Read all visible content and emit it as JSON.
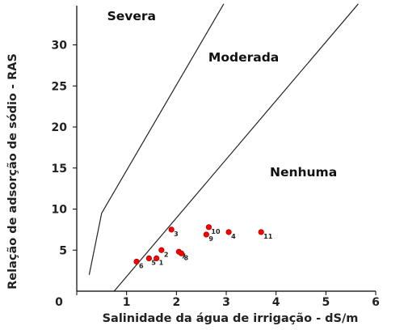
{
  "chart_data": {
    "type": "scatter",
    "xlabel": "Salinidade da água de irrigação - dS/m",
    "ylabel": "Relação de adsorção de sódio - RAS",
    "xlim": [
      0,
      6
    ],
    "ylim": [
      0,
      35
    ],
    "x_ticks": [
      "0",
      "1",
      "2",
      "3",
      "4",
      "5",
      "6"
    ],
    "y_ticks": [
      "5",
      "10",
      "15",
      "20",
      "25",
      "30"
    ],
    "zones": [
      {
        "label": "Severa",
        "x": 1.1,
        "y": 33
      },
      {
        "label": "Moderada",
        "x": 3.35,
        "y": 28
      },
      {
        "label": "Nenhuma",
        "x": 4.55,
        "y": 14
      }
    ],
    "boundaries": [
      {
        "points": [
          [
            0.25,
            2
          ],
          [
            0.5,
            9.5
          ],
          [
            2.95,
            35
          ]
        ]
      },
      {
        "points": [
          [
            0.75,
            0
          ],
          [
            5.65,
            35
          ]
        ]
      }
    ],
    "marker_color": "#ff0000",
    "series": [
      {
        "points": [
          {
            "id": "1",
            "x": 1.6,
            "y": 4.0
          },
          {
            "id": "2",
            "x": 1.7,
            "y": 5.0
          },
          {
            "id": "3",
            "x": 1.9,
            "y": 7.5
          },
          {
            "id": "4",
            "x": 3.05,
            "y": 7.2
          },
          {
            "id": "5",
            "x": 1.45,
            "y": 4.0
          },
          {
            "id": "6",
            "x": 1.2,
            "y": 3.6
          },
          {
            "id": "7",
            "x": 2.05,
            "y": 4.8
          },
          {
            "id": "8",
            "x": 2.1,
            "y": 4.6
          },
          {
            "id": "9",
            "x": 2.6,
            "y": 6.9
          },
          {
            "id": "10",
            "x": 2.65,
            "y": 7.8
          },
          {
            "id": "11",
            "x": 3.7,
            "y": 7.2
          }
        ]
      }
    ]
  }
}
